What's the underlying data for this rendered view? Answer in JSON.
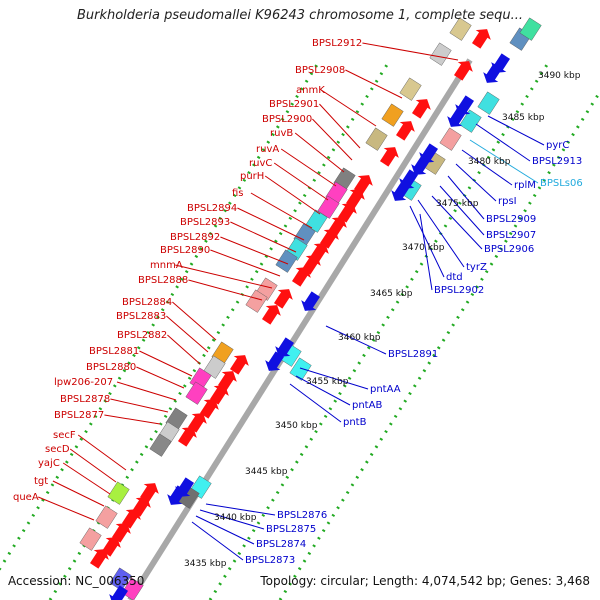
{
  "title": "Burkholderia pseudomallei K96243 chromosome 1, complete sequ...",
  "footer": {
    "accession": "Accession: NC_006350",
    "summary": "Topology: circular; Length: 4,074,542 bp; Genes: 3,468"
  },
  "colors": {
    "left_label": "#cc0000",
    "right_label": "#0000cc",
    "highlight_label": "#22aadd",
    "backbone": "#999999",
    "tick_dots": "#22aa22"
  },
  "scale_labels": [
    {
      "text": "3490 kbp",
      "t": 1.0,
      "side": "right"
    },
    {
      "text": "3485 kbp",
      "t": 1.16,
      "side": "right"
    },
    {
      "text": "3480 kbp",
      "t": 1.32,
      "side": "right"
    },
    {
      "text": "3475 kbp",
      "t": 1.48,
      "side": "right"
    },
    {
      "text": "3470 kbp",
      "t": 1.64,
      "side": "right"
    },
    {
      "text": "3465 kbp",
      "t": 1.8,
      "side": "right"
    },
    {
      "text": "3460 kbp",
      "t": 1.96,
      "side": "right"
    },
    {
      "text": "3455 kbp",
      "t": 2.12,
      "side": "right"
    },
    {
      "text": "3450 kbp",
      "t": 2.28,
      "side": "right"
    },
    {
      "text": "3445 kbp",
      "t": 2.44,
      "side": "right"
    },
    {
      "text": "3440 kbp",
      "t": 2.6,
      "side": "right"
    },
    {
      "text": "3435 kbp",
      "t": 2.76,
      "side": "right"
    }
  ],
  "left_labels": [
    "BPSL2912",
    "BPSL2908",
    "anmK",
    "BPSL2901",
    "BPSL2900",
    "ruvB",
    "ruvA",
    "ruvC",
    "purH",
    "fis",
    "BPSL2894",
    "BPSL2893",
    "BPSL2892",
    "BPSL2890",
    "mnmA",
    "BPSL2888",
    "BPSL2884",
    "BPSL2883",
    "BPSL2882",
    "BPSL2881",
    "BPSL2880",
    "lpw206-207",
    "BPSL2878",
    "BPSL2877",
    "secF",
    "secD",
    "yajC",
    "tgt",
    "queA"
  ],
  "right_labels": [
    "pyrC",
    "BPSL2913",
    "rplM",
    "BPSLs06",
    "rpsI",
    "BPSL2909",
    "BPSL2907",
    "BPSL2906",
    "tyrZ",
    "dtd",
    "BPSL2902",
    "BPSL2891",
    "pntAA",
    "pntAB",
    "pntB",
    "BPSL2876",
    "BPSL2875",
    "BPSL2874",
    "BPSL2873"
  ]
}
